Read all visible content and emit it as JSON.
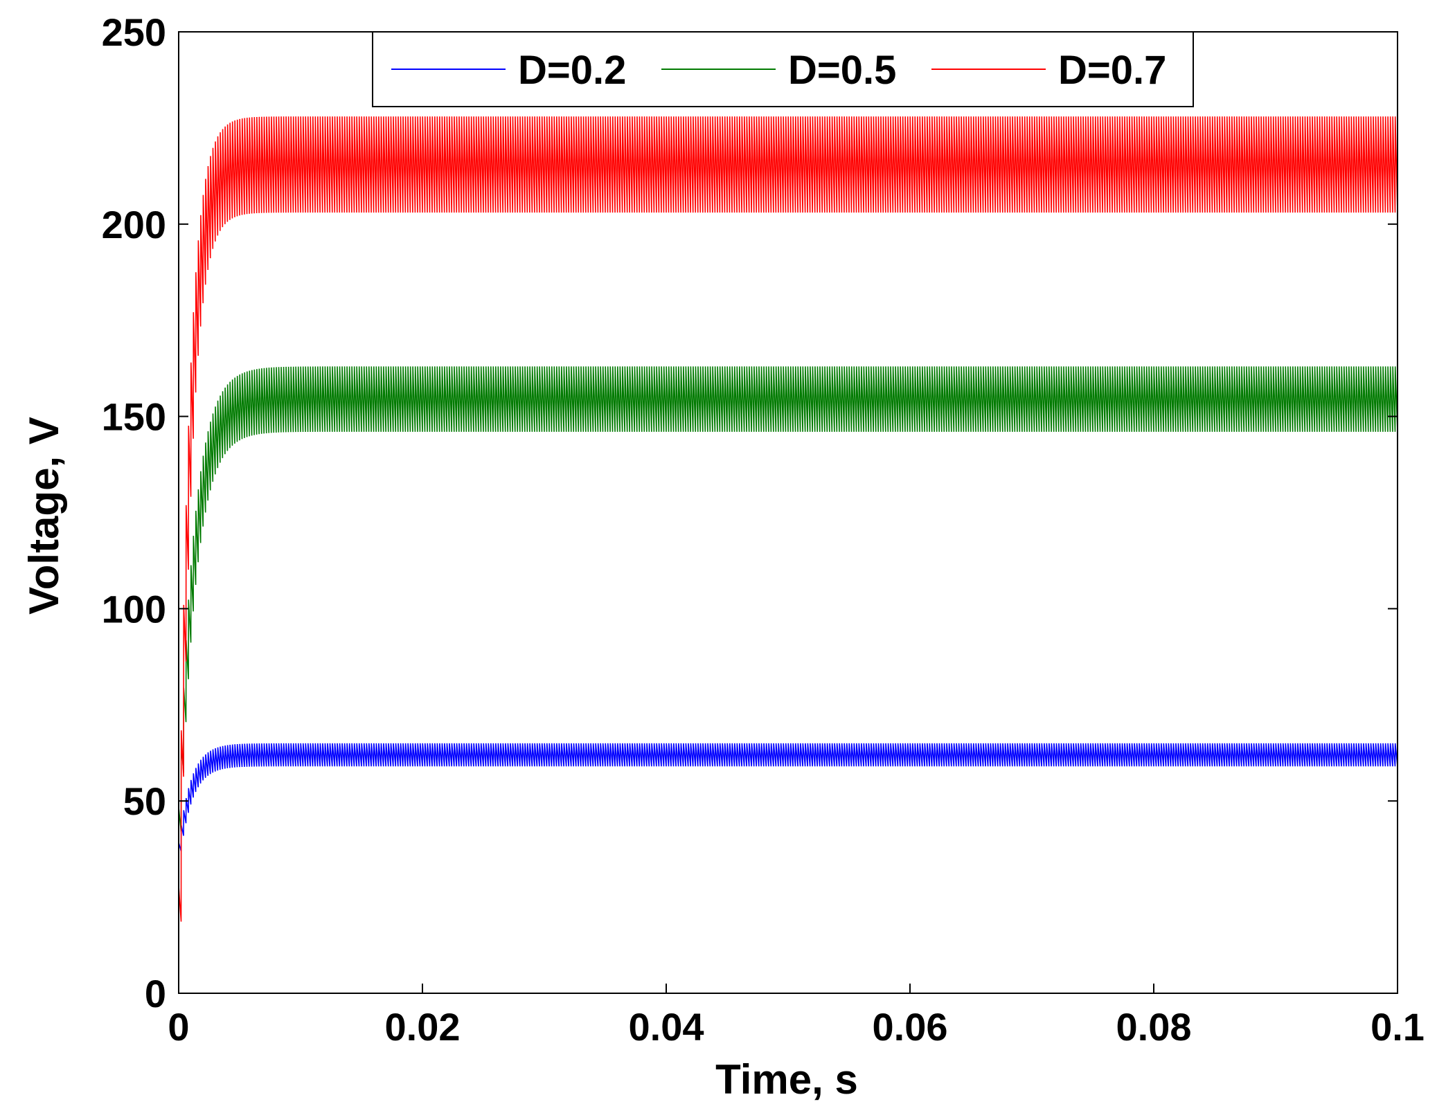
{
  "chart_data": {
    "type": "line",
    "title": "",
    "xlabel": "Time, s",
    "ylabel": "Voltage, V",
    "xlim": [
      0,
      0.1
    ],
    "ylim": [
      0,
      250
    ],
    "grid": false,
    "legend_position": "top-center",
    "x_ticks": [
      0,
      0.02,
      0.04,
      0.06,
      0.08,
      0.1
    ],
    "x_tick_labels": [
      "0",
      "0.02",
      "0.04",
      "0.06",
      "0.08",
      "0.1"
    ],
    "y_ticks": [
      0,
      50,
      100,
      150,
      200,
      250
    ],
    "y_tick_labels": [
      "0",
      "50",
      "100",
      "150",
      "200",
      "250"
    ],
    "ripple_period_s": 0.0002,
    "series": [
      {
        "name": "D=0.2",
        "color": "#0000ff",
        "start_value": 38,
        "steady_min": 59,
        "steady_max": 65,
        "settling_time_s": 0.004
      },
      {
        "name": "D=0.5",
        "color": "#007a00",
        "start_value": 45,
        "steady_min": 146,
        "steady_max": 163,
        "settling_time_s": 0.005
      },
      {
        "name": "D=0.7",
        "color": "#ff0000",
        "start_value": 23,
        "steady_min": 203,
        "steady_max": 228,
        "settling_time_s": 0.0035
      }
    ]
  }
}
